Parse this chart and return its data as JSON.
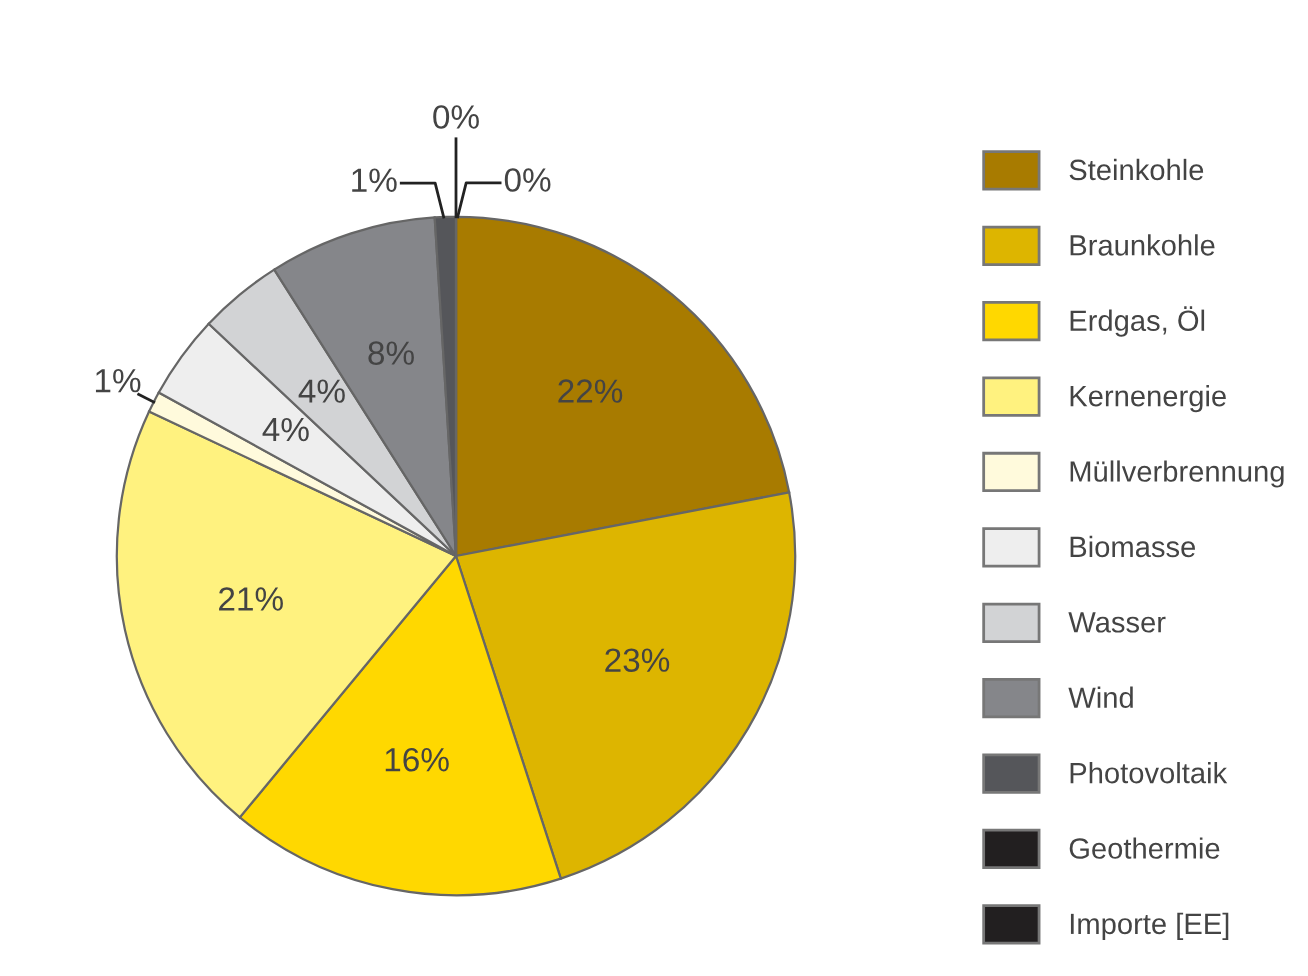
{
  "chart_data": {
    "type": "pie",
    "categories": [
      "Steinkohle",
      "Braunkohle",
      "Erdgas, Öl",
      "Kernenergie",
      "Müllverbrennung",
      "Biomasse",
      "Wasser",
      "Wind",
      "Photovoltaik",
      "Geothermie",
      "Importe [EE]"
    ],
    "values": [
      22,
      23,
      16,
      21,
      1,
      4,
      4,
      8,
      1,
      0,
      0
    ],
    "colors": [
      "#a87b00",
      "#ddb500",
      "#ffd800",
      "#fff27f",
      "#fffadc",
      "#eeeeee",
      "#d2d3d5",
      "#85868a",
      "#55565a",
      "#221f20",
      "#221f20"
    ],
    "value_labels": [
      "22%",
      "23%",
      "16%",
      "21%",
      "1%",
      "4%",
      "4%",
      "8%",
      "1%",
      "0%",
      "0%"
    ],
    "legend": "right"
  }
}
